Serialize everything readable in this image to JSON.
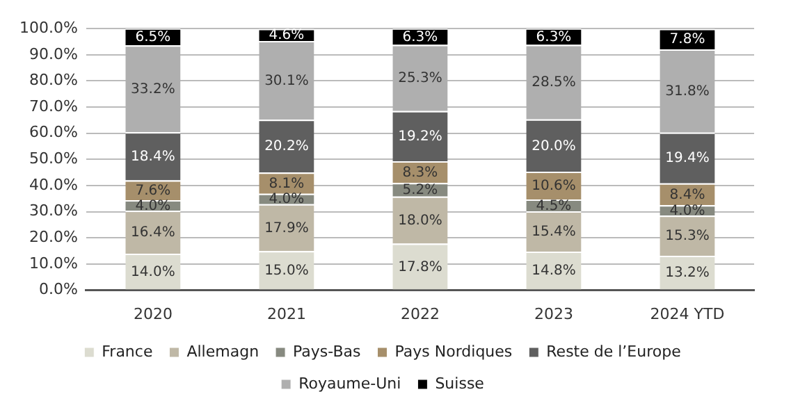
{
  "chart_data": {
    "type": "bar",
    "stacked": true,
    "categories": [
      "2020",
      "2021",
      "2022",
      "2023",
      "2024 YTD"
    ],
    "series": [
      {
        "name": "France",
        "color": "#dcdcd0",
        "values": [
          14.0,
          15.0,
          17.8,
          14.8,
          13.2
        ],
        "value_labels": [
          "14.0%",
          "15.0%",
          "17.8%",
          "14.8%",
          "13.2%"
        ]
      },
      {
        "name": "Allemagn",
        "color": "#bfb8a6",
        "values": [
          16.4,
          17.9,
          18.0,
          15.4,
          15.3
        ],
        "value_labels": [
          "16.4%",
          "17.9%",
          "18.0%",
          "15.4%",
          "15.3%"
        ]
      },
      {
        "name": "Pays-Bas",
        "color": "#878a80",
        "values": [
          4.0,
          4.0,
          5.2,
          4.5,
          4.0
        ],
        "value_labels": [
          "4.0%",
          "4.0%",
          "5.2%",
          "4.5%",
          "4.0%"
        ]
      },
      {
        "name": "Pays Nordiques",
        "color": "#a68f6b",
        "values": [
          7.6,
          8.1,
          8.3,
          10.6,
          8.4
        ],
        "value_labels": [
          "7.6%",
          "8.1%",
          "8.3%",
          "10.6%",
          "8.4%"
        ]
      },
      {
        "name": "Reste de l’Europe",
        "color": "#5f5f5f",
        "values": [
          18.4,
          20.2,
          19.2,
          20.0,
          19.4
        ],
        "value_labels": [
          "18.4%",
          "20.2%",
          "19.2%",
          "20.0%",
          "19.4%"
        ]
      },
      {
        "name": "Royaume-Uni",
        "color": "#afafaf",
        "values": [
          33.2,
          30.1,
          25.3,
          28.5,
          31.8
        ],
        "value_labels": [
          "33.2%",
          "30.1%",
          "25.3%",
          "28.5%",
          "31.8%"
        ]
      },
      {
        "name": "Suisse",
        "color": "#000000",
        "values": [
          6.5,
          4.6,
          6.3,
          6.3,
          7.8
        ],
        "value_labels": [
          "6.5%",
          "4.6%",
          "6.3%",
          "6.3%",
          "7.8%"
        ]
      }
    ],
    "ylim": [
      0,
      100
    ],
    "yticks": [
      {
        "value": 0,
        "label": "0.0%"
      },
      {
        "value": 10,
        "label": "10.0%"
      },
      {
        "value": 20,
        "label": "20.0%"
      },
      {
        "value": 30,
        "label": "30.0%"
      },
      {
        "value": 40,
        "label": "40.0%"
      },
      {
        "value": 50,
        "label": "50.0%"
      },
      {
        "value": 60,
        "label": "60.0%"
      },
      {
        "value": 70,
        "label": "70.0%"
      },
      {
        "value": 80,
        "label": "80.0%"
      },
      {
        "value": 90,
        "label": "90.0%"
      },
      {
        "value": 100,
        "label": "100.0%"
      }
    ],
    "grid": "y",
    "legend": "bottom"
  }
}
